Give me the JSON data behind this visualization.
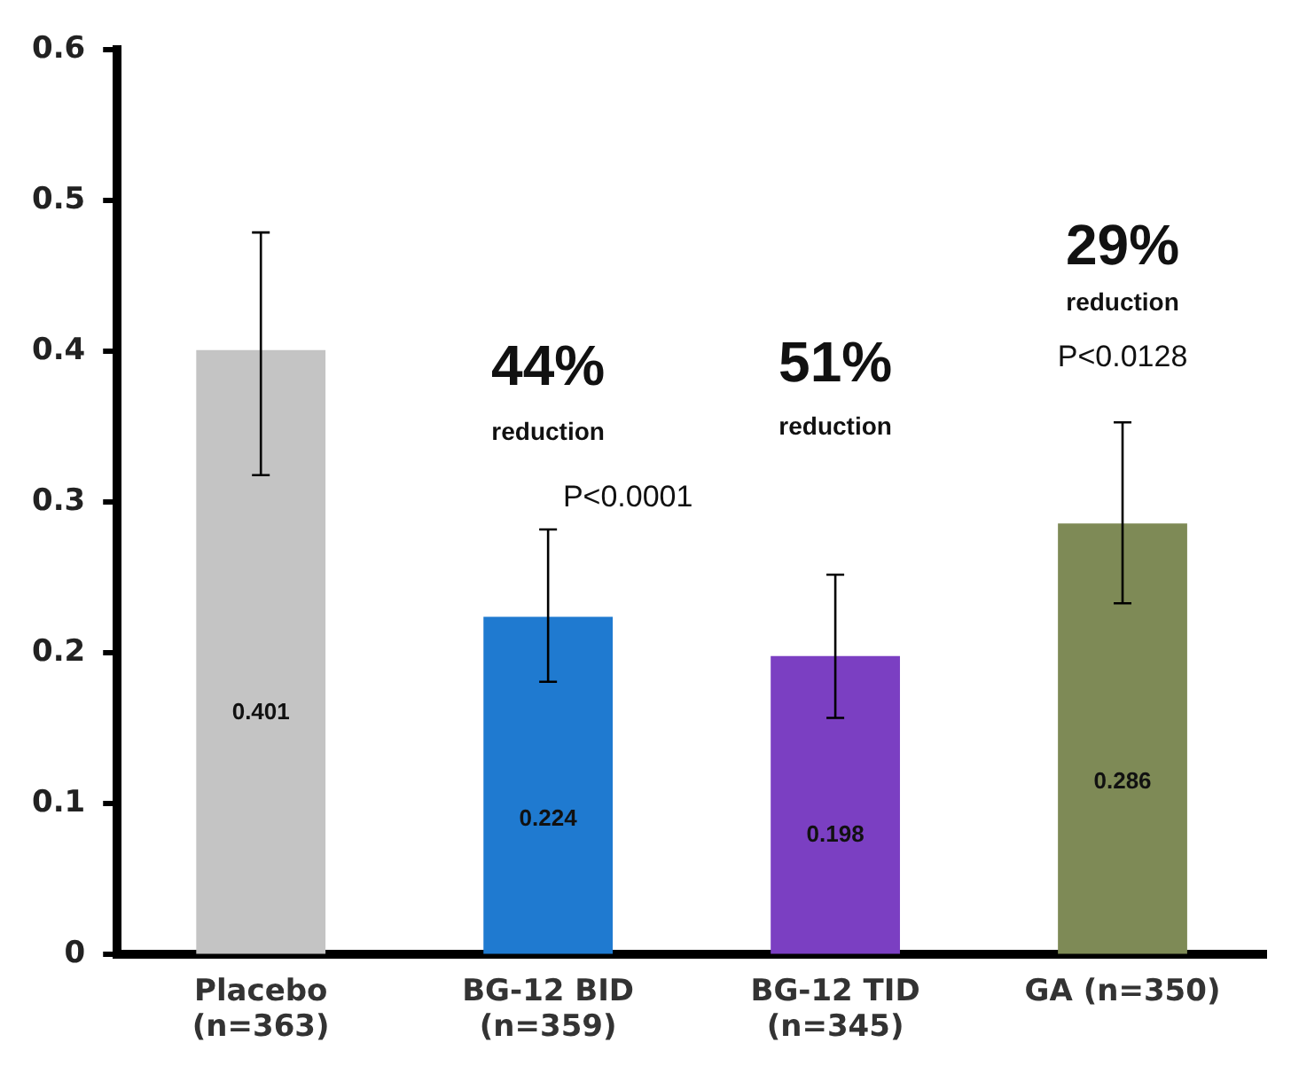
{
  "chart_data": {
    "type": "bar",
    "categories": [
      "Placebo\n(n=363)",
      "BG-12 BID\n(n=359)",
      "BG-12 TID\n(n=345)",
      "GA (n=350)"
    ],
    "values": [
      0.401,
      0.224,
      0.198,
      0.286
    ],
    "colors": [
      "#c4c4c4",
      "#1f7ad0",
      "#7b3fc2",
      "#7e8a56"
    ],
    "errors": [
      [
        0.318,
        0.479
      ],
      [
        0.181,
        0.282
      ],
      [
        0.157,
        0.252
      ],
      [
        0.233,
        0.353
      ]
    ],
    "data_labels": true,
    "ylim": [
      0,
      0.6
    ],
    "yticks": [
      0,
      0.1,
      0.2,
      0.3,
      0.4,
      0.5,
      0.6
    ],
    "grid": false,
    "legend": false,
    "annotations": [
      "44%",
      "reduction",
      "P<0.0001",
      "51%",
      "reduction",
      "29%",
      "reduction",
      "P<0.0128"
    ]
  }
}
